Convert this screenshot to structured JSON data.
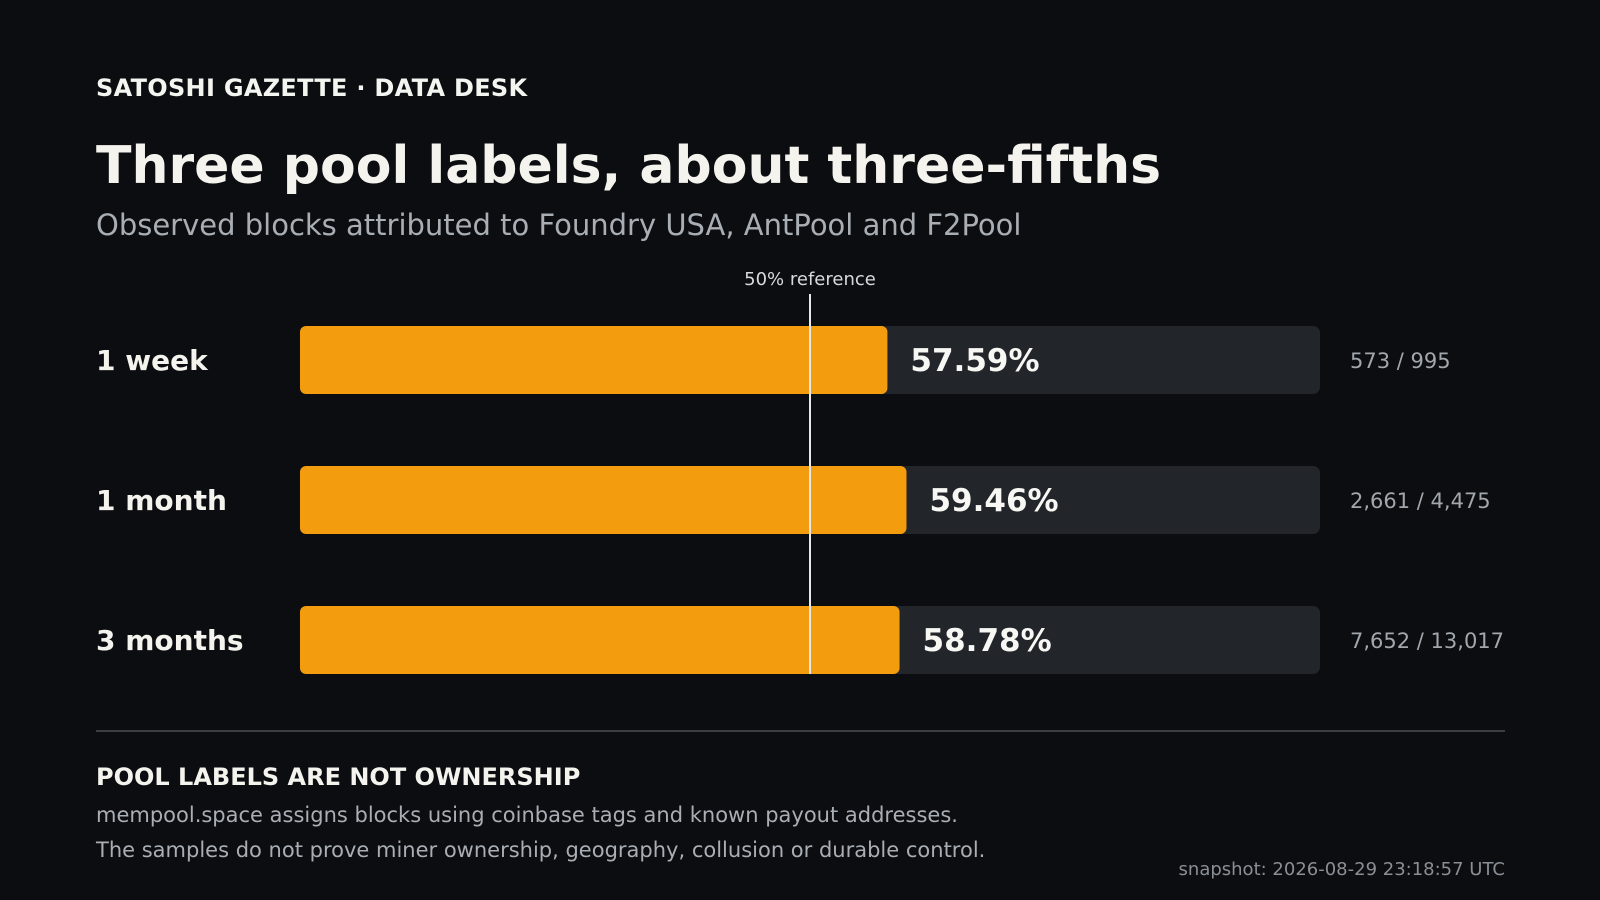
{
  "header": {
    "kicker": "SATOSHI GAZETTE · DATA DESK",
    "title": "Three pool labels, about three-fifths",
    "subtitle": "Observed blocks attributed to Foundry USA, AntPool and F2Pool"
  },
  "chart_data": {
    "type": "bar",
    "orientation": "horizontal",
    "categories": [
      "1 week",
      "1 month",
      "3 months"
    ],
    "values": [
      57.59,
      59.46,
      58.78
    ],
    "value_labels": [
      "57.59%",
      "59.46%",
      "58.78%"
    ],
    "counts": [
      "573 / 995",
      "2,661 / 4,475",
      "7,652 / 13,017"
    ],
    "xlim": [
      0,
      100
    ],
    "reference": {
      "value": 50,
      "label": "50% reference"
    },
    "colors": {
      "bar": "#f39c0d",
      "track": "#22252a",
      "reference": "#e8e8e8"
    },
    "grid": false,
    "legend": "none"
  },
  "footnote": {
    "title": "POOL LABELS ARE NOT OWNERSHIP",
    "lines": [
      "mempool.space assigns blocks using coinbase tags and known payout addresses.",
      "The samples do not prove miner ownership, geography, collusion or durable control."
    ],
    "snapshot": "snapshot: 2026-08-29 23:18:57 UTC"
  }
}
